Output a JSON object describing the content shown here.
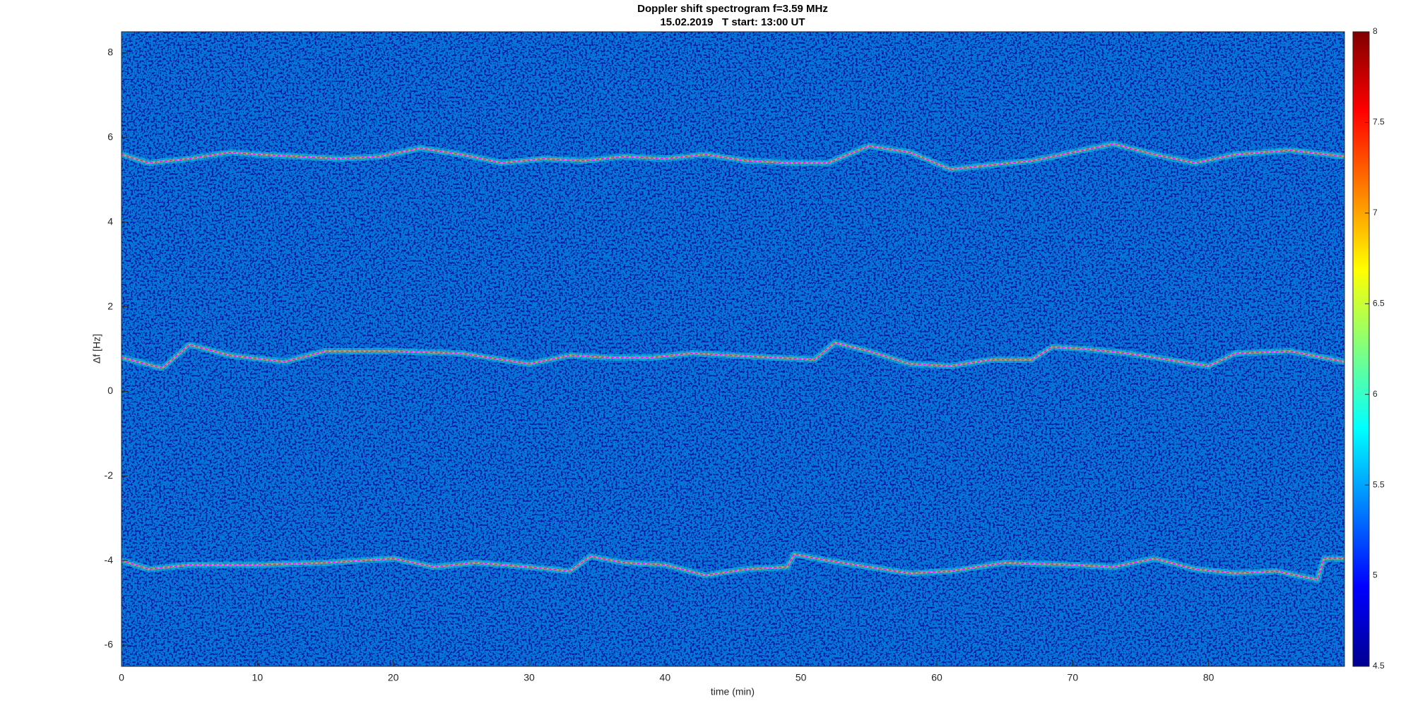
{
  "chart_data": {
    "type": "spectrogram",
    "title": "Doppler shift spectrogram f=3.59 MHz",
    "subtitle": "15.02.2019   T start: 13:00 UT",
    "xlabel": "time (min)",
    "ylabel": "Δf [Hz]",
    "xlim": [
      0,
      90
    ],
    "xticks": [
      0,
      10,
      20,
      30,
      40,
      50,
      60,
      70,
      80
    ],
    "ylim": [
      -6.5,
      8.5
    ],
    "yticks": [
      -6,
      -4,
      -2,
      0,
      2,
      4,
      6,
      8
    ],
    "colormap": "jet",
    "clim": [
      4.5,
      8
    ],
    "cticks": [
      4.5,
      5,
      5.5,
      6,
      6.5,
      7,
      7.5,
      8
    ],
    "series": [
      {
        "color": "#ff00ff",
        "x": [
          0,
          2,
          5,
          8,
          10,
          13,
          16,
          19,
          22,
          25,
          28,
          31,
          34,
          37,
          40,
          43,
          46,
          49,
          52,
          55,
          58,
          61,
          64,
          67,
          70,
          73,
          76,
          79,
          82,
          86,
          90
        ],
        "values": [
          5.6,
          5.4,
          5.5,
          5.65,
          5.6,
          5.55,
          5.5,
          5.55,
          5.75,
          5.6,
          5.4,
          5.5,
          5.45,
          5.55,
          5.5,
          5.6,
          5.45,
          5.4,
          5.4,
          5.8,
          5.65,
          5.25,
          5.35,
          5.45,
          5.65,
          5.85,
          5.6,
          5.4,
          5.6,
          5.7,
          5.55
        ]
      },
      {
        "color": "#ff00ff",
        "x": [
          0,
          3,
          5,
          8,
          12,
          15,
          20,
          25,
          30,
          33,
          36,
          39,
          42,
          45,
          48,
          51,
          52.5,
          55,
          58,
          61,
          64,
          67,
          68.5,
          71,
          74,
          77,
          80,
          82,
          86,
          90
        ],
        "values": [
          0.8,
          0.55,
          1.1,
          0.85,
          0.7,
          0.95,
          0.95,
          0.9,
          0.65,
          0.85,
          0.8,
          0.8,
          0.9,
          0.85,
          0.8,
          0.75,
          1.15,
          0.95,
          0.65,
          0.6,
          0.75,
          0.75,
          1.05,
          1.0,
          0.9,
          0.75,
          0.6,
          0.9,
          0.95,
          0.7
        ]
      },
      {
        "color": "#ff00ff",
        "x": [
          0,
          2,
          5,
          10,
          15,
          20,
          23,
          26,
          30,
          33,
          34.5,
          37,
          40,
          43,
          46,
          49,
          49.5,
          52,
          55,
          58,
          61,
          65,
          70,
          73,
          76,
          79,
          82,
          85,
          88,
          88.5,
          90
        ],
        "values": [
          -4.0,
          -4.2,
          -4.1,
          -4.1,
          -4.05,
          -3.95,
          -4.15,
          -4.05,
          -4.15,
          -4.25,
          -3.9,
          -4.05,
          -4.1,
          -4.35,
          -4.2,
          -4.15,
          -3.85,
          -4.0,
          -4.15,
          -4.3,
          -4.25,
          -4.05,
          -4.1,
          -4.15,
          -3.95,
          -4.2,
          -4.3,
          -4.25,
          -4.45,
          -3.95,
          -3.95
        ]
      }
    ]
  }
}
